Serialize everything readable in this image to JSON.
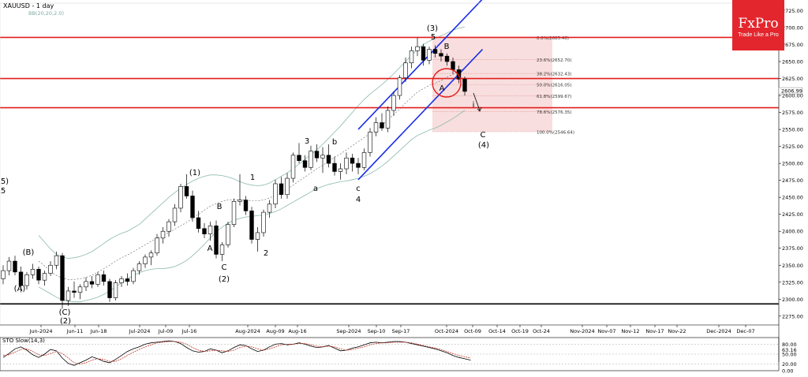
{
  "header": {
    "symbol": "XAUUSD - 1 day",
    "indicator": "BB(20,20,2.0)",
    "oscillator_label": "STO Slow(14,3)"
  },
  "brand": {
    "logo": "FxPro",
    "tagline": "Trade Like a Pro"
  },
  "colors": {
    "background": "#ffffff",
    "bull": "#ffffff",
    "bear": "#000000",
    "wick": "#000000",
    "bands": "#8cb9b0",
    "mid_band": "#666666",
    "resistance": "#e31d1d",
    "channel": "#1a2ee6",
    "fib_zone": "#f8dede",
    "fib_line": "#e9a3a3",
    "support": "#000000",
    "brand": "#e3262d"
  },
  "chart_data": {
    "type": "candlestick",
    "x_tick_labels": [
      "Jun-2024",
      "Jun-11",
      "Jun-18",
      "Jul-2024",
      "Jul-09",
      "Jul-16",
      "Aug-2024",
      "Aug-09",
      "Aug-16",
      "Sep-2024",
      "Sep-10",
      "Sep-17",
      "Oct-2024",
      "Oct-09",
      "Oct-14",
      "Oct-19",
      "Oct-24",
      "Nov-2024",
      "Nov-07",
      "Nov-12",
      "Nov-17",
      "Nov-22",
      "Dec-2024",
      "Dec-07"
    ],
    "y_ticks": [
      2275,
      2300,
      2325,
      2350,
      2375,
      2400,
      2425,
      2450,
      2475,
      2500,
      2525,
      2550,
      2575,
      2600,
      2625,
      2650,
      2675,
      2700,
      2725
    ],
    "ylim": [
      2262,
      2736
    ],
    "current_price_label": "2606.99",
    "horizontal_lines": {
      "resistance": [
        2685.5,
        2625,
        2582
      ],
      "support": [
        2293
      ]
    },
    "fibonacci": [
      {
        "label": "0.0%(2685.46)",
        "value": 2685.46
      },
      {
        "label": "23.6%(2652.70)",
        "value": 2652.7
      },
      {
        "label": "38.2%(2632.43)",
        "value": 2632.43
      },
      {
        "label": "50.0%(2616.05)",
        "value": 2616.05
      },
      {
        "label": "61.8%(2599.67)",
        "value": 2599.67
      },
      {
        "label": "78.6%(2576.35)",
        "value": 2576.35
      },
      {
        "label": "100.0%(2546.64)",
        "value": 2546.64
      }
    ],
    "wave_labels": [
      "(5)",
      "5",
      "(A)",
      "(B)",
      "(C)",
      "(2)",
      "(1)",
      "B",
      "A",
      "C",
      "(2)",
      "1",
      "2",
      "3",
      "b",
      "a",
      "c",
      "4",
      "(3)",
      "5",
      "B",
      "A",
      "i",
      "C",
      "(4)"
    ],
    "candles": [
      [
        2330,
        2350,
        2322,
        2342
      ],
      [
        2342,
        2362,
        2335,
        2356
      ],
      [
        2356,
        2364,
        2335,
        2340
      ],
      [
        2340,
        2348,
        2310,
        2320
      ],
      [
        2320,
        2340,
        2314,
        2336
      ],
      [
        2336,
        2352,
        2330,
        2344
      ],
      [
        2344,
        2348,
        2322,
        2328
      ],
      [
        2328,
        2342,
        2320,
        2338
      ],
      [
        2338,
        2356,
        2334,
        2350
      ],
      [
        2350,
        2370,
        2344,
        2364
      ],
      [
        2364,
        2368,
        2286,
        2298
      ],
      [
        2298,
        2318,
        2290,
        2312
      ],
      [
        2312,
        2326,
        2302,
        2310
      ],
      [
        2310,
        2322,
        2300,
        2318
      ],
      [
        2318,
        2332,
        2312,
        2326
      ],
      [
        2326,
        2334,
        2316,
        2322
      ],
      [
        2322,
        2340,
        2318,
        2336
      ],
      [
        2336,
        2342,
        2320,
        2326
      ],
      [
        2326,
        2330,
        2296,
        2302
      ],
      [
        2302,
        2328,
        2298,
        2324
      ],
      [
        2324,
        2334,
        2318,
        2330
      ],
      [
        2330,
        2338,
        2320,
        2326
      ],
      [
        2326,
        2346,
        2322,
        2342
      ],
      [
        2342,
        2356,
        2336,
        2352
      ],
      [
        2352,
        2366,
        2346,
        2362
      ],
      [
        2362,
        2372,
        2350,
        2368
      ],
      [
        2368,
        2396,
        2364,
        2390
      ],
      [
        2390,
        2406,
        2382,
        2400
      ],
      [
        2400,
        2418,
        2392,
        2414
      ],
      [
        2414,
        2440,
        2408,
        2434
      ],
      [
        2434,
        2470,
        2428,
        2466
      ],
      [
        2466,
        2484,
        2448,
        2452
      ],
      [
        2452,
        2460,
        2414,
        2420
      ],
      [
        2420,
        2430,
        2398,
        2404
      ],
      [
        2404,
        2412,
        2390,
        2396
      ],
      [
        2396,
        2414,
        2386,
        2408
      ],
      [
        2408,
        2416,
        2360,
        2366
      ],
      [
        2366,
        2384,
        2356,
        2380
      ],
      [
        2380,
        2414,
        2376,
        2410
      ],
      [
        2410,
        2448,
        2406,
        2444
      ],
      [
        2444,
        2484,
        2438,
        2446
      ],
      [
        2446,
        2452,
        2424,
        2430
      ],
      [
        2430,
        2436,
        2382,
        2388
      ],
      [
        2388,
        2406,
        2370,
        2398
      ],
      [
        2398,
        2432,
        2392,
        2428
      ],
      [
        2428,
        2446,
        2420,
        2440
      ],
      [
        2440,
        2476,
        2434,
        2470
      ],
      [
        2470,
        2480,
        2448,
        2454
      ],
      [
        2454,
        2486,
        2448,
        2478
      ],
      [
        2478,
        2516,
        2472,
        2512
      ],
      [
        2512,
        2530,
        2500,
        2504
      ],
      [
        2504,
        2512,
        2488,
        2494
      ],
      [
        2494,
        2526,
        2490,
        2518
      ],
      [
        2518,
        2528,
        2502,
        2508
      ],
      [
        2508,
        2524,
        2486,
        2512
      ],
      [
        2512,
        2528,
        2494,
        2500
      ],
      [
        2500,
        2510,
        2482,
        2488
      ],
      [
        2488,
        2500,
        2476,
        2492
      ],
      [
        2492,
        2516,
        2484,
        2508
      ],
      [
        2508,
        2514,
        2488,
        2500
      ],
      [
        2500,
        2508,
        2484,
        2494
      ],
      [
        2494,
        2522,
        2490,
        2516
      ],
      [
        2516,
        2552,
        2510,
        2546
      ],
      [
        2546,
        2568,
        2540,
        2560
      ],
      [
        2560,
        2574,
        2548,
        2552
      ],
      [
        2552,
        2584,
        2546,
        2578
      ],
      [
        2578,
        2606,
        2570,
        2600
      ],
      [
        2600,
        2630,
        2594,
        2626
      ],
      [
        2626,
        2656,
        2620,
        2648
      ],
      [
        2648,
        2672,
        2640,
        2666
      ],
      [
        2666,
        2685,
        2658,
        2672
      ],
      [
        2672,
        2676,
        2644,
        2652
      ],
      [
        2652,
        2672,
        2646,
        2668
      ],
      [
        2668,
        2674,
        2656,
        2662
      ],
      [
        2662,
        2668,
        2650,
        2658
      ],
      [
        2658,
        2662,
        2644,
        2650
      ],
      [
        2650,
        2656,
        2632,
        2638
      ],
      [
        2638,
        2644,
        2618,
        2624
      ],
      [
        2624,
        2628,
        2600,
        2606
      ]
    ],
    "upper_band": [
      2394,
      2384,
      2374,
      2366,
      2362,
      2360,
      2361,
      2363,
      2366,
      2370,
      2376,
      2382,
      2388,
      2393,
      2397,
      2400,
      2405,
      2410,
      2418,
      2426,
      2434,
      2442,
      2450,
      2457,
      2463,
      2469,
      2474,
      2478,
      2481,
      2483,
      2483,
      2482,
      2480,
      2477,
      2473,
      2470,
      2468,
      2467,
      2468,
      2471,
      2476,
      2481,
      2486,
      2492,
      2499,
      2506,
      2513,
      2520,
      2528,
      2537,
      2546,
      2555,
      2565,
      2575,
      2585,
      2594,
      2602,
      2609,
      2616,
      2624,
      2632,
      2641,
      2650,
      2659,
      2668,
      2675,
      2680,
      2684,
      2688,
      2692,
      2696,
      2699,
      2701
    ],
    "lower_band": [
      2318,
      2313,
      2308,
      2303,
      2299,
      2297,
      2296,
      2296,
      2298,
      2300,
      2303,
      2307,
      2312,
      2318,
      2324,
      2330,
      2335,
      2339,
      2342,
      2344,
      2345,
      2345,
      2346,
      2348,
      2352,
      2357,
      2364,
      2372,
      2381,
      2390,
      2399,
      2406,
      2412,
      2416,
      2419,
      2421,
      2422,
      2423,
      2424,
      2426,
      2429,
      2433,
      2438,
      2443,
      2448,
      2453,
      2458,
      2463,
      2466,
      2469,
      2471,
      2473,
      2474,
      2476,
      2478,
      2481,
      2485,
      2490,
      2496,
      2503,
      2511,
      2519,
      2527,
      2535,
      2541,
      2545,
      2549,
      2552,
      2556,
      2561,
      2566,
      2572,
      2578
    ],
    "mid_band": [
      2356,
      2349,
      2341,
      2335,
      2331,
      2329,
      2329,
      2330,
      2332,
      2335,
      2340,
      2345,
      2350,
      2356,
      2361,
      2365,
      2370,
      2375,
      2380,
      2385,
      2390,
      2394,
      2398,
      2403,
      2408,
      2413,
      2419,
      2425,
      2431,
      2437,
      2441,
      2444,
      2446,
      2447,
      2446,
      2446,
      2445,
      2445,
      2446,
      2449,
      2453,
      2457,
      2462,
      2468,
      2474,
      2480,
      2486,
      2492,
      2497,
      2503,
      2509,
      2514,
      2520,
      2526,
      2532,
      2538,
      2544,
      2550,
      2556,
      2564,
      2572,
      2580,
      2589,
      2597,
      2605,
      2610,
      2615,
      2618,
      2622,
      2627,
      2631,
      2636,
      2640
    ],
    "stochastic": {
      "label": "STO Slow(14,3)",
      "ylim": [
        0,
        100
      ],
      "levels": [
        20,
        50,
        80
      ],
      "ticks": [
        "80.00",
        "63.16",
        "50.00",
        "20.00",
        "0.00"
      ],
      "k": [
        40,
        52,
        66,
        72,
        62,
        48,
        40,
        50,
        64,
        60,
        38,
        22,
        16,
        24,
        32,
        42,
        36,
        28,
        24,
        34,
        46,
        58,
        66,
        72,
        80,
        84,
        86,
        88,
        90,
        88,
        82,
        70,
        60,
        56,
        58,
        66,
        62,
        54,
        60,
        70,
        78,
        76,
        66,
        58,
        62,
        72,
        80,
        82,
        78,
        80,
        84,
        80,
        74,
        70,
        72,
        76,
        68,
        60,
        62,
        68,
        72,
        78,
        84,
        86,
        84,
        86,
        88,
        88,
        86,
        82,
        78,
        74,
        70,
        66,
        60,
        54,
        46,
        40,
        36,
        32
      ],
      "d": [
        46,
        48,
        56,
        64,
        66,
        58,
        48,
        46,
        52,
        58,
        52,
        38,
        24,
        20,
        24,
        32,
        36,
        34,
        28,
        28,
        36,
        46,
        56,
        64,
        72,
        78,
        84,
        86,
        88,
        88,
        86,
        80,
        70,
        62,
        58,
        60,
        62,
        60,
        58,
        62,
        70,
        74,
        72,
        66,
        62,
        66,
        72,
        78,
        80,
        80,
        82,
        82,
        78,
        74,
        72,
        74,
        72,
        66,
        62,
        64,
        68,
        72,
        78,
        82,
        84,
        84,
        86,
        86,
        86,
        84,
        80,
        76,
        72,
        68,
        64,
        58,
        52,
        46,
        42,
        38
      ]
    }
  }
}
